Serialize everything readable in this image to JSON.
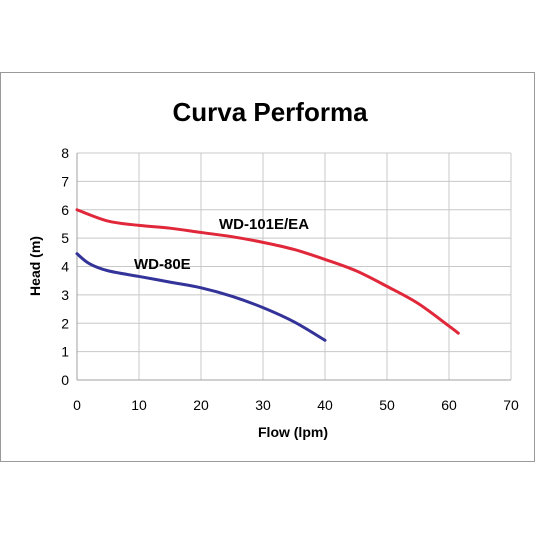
{
  "chart_data": {
    "type": "line",
    "title": "Curva Performa",
    "xlabel": "Flow (lpm)",
    "ylabel": "Head (m)",
    "xlim": [
      0,
      70
    ],
    "ylim": [
      0,
      8
    ],
    "xticks": [
      0,
      10,
      20,
      30,
      40,
      50,
      60,
      70
    ],
    "yticks": [
      0,
      1,
      2,
      3,
      4,
      5,
      6,
      7,
      8
    ],
    "grid": true,
    "series": [
      {
        "name": "WD-101E/EA",
        "color": "#e0283a",
        "x": [
          0,
          5,
          10,
          15,
          20,
          25,
          30,
          35,
          40,
          45,
          50,
          55,
          60,
          61.5
        ],
        "y": [
          6.0,
          5.6,
          5.45,
          5.35,
          5.2,
          5.05,
          4.85,
          4.6,
          4.25,
          3.85,
          3.3,
          2.7,
          1.9,
          1.65
        ]
      },
      {
        "name": "WD-80E",
        "color": "#333399",
        "x": [
          0,
          2,
          5,
          10,
          15,
          20,
          25,
          30,
          35,
          40
        ],
        "y": [
          4.45,
          4.1,
          3.85,
          3.65,
          3.45,
          3.25,
          2.95,
          2.55,
          2.05,
          1.4
        ]
      }
    ]
  }
}
